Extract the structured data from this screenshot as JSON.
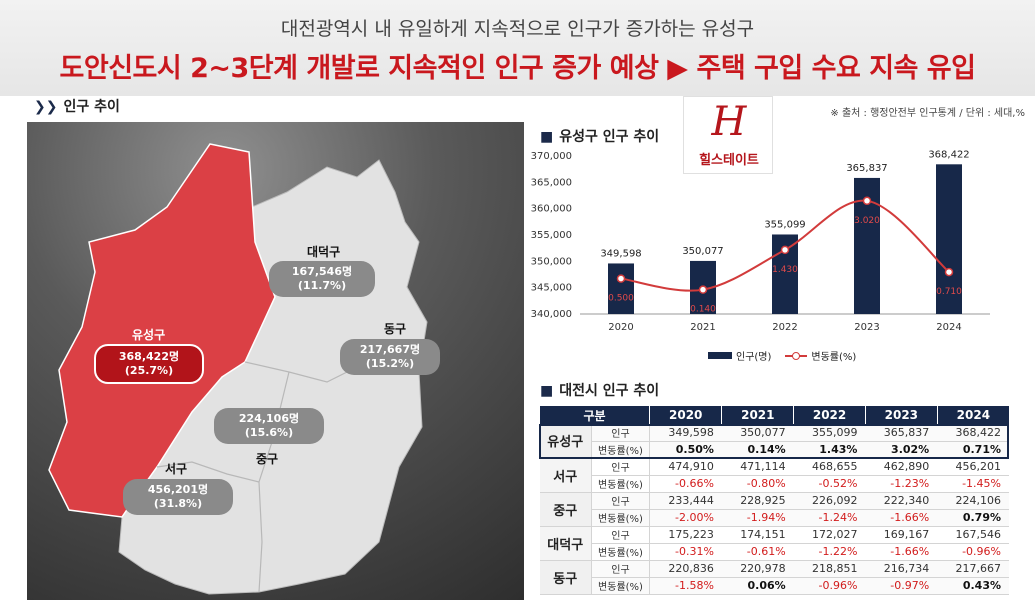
{
  "header": {
    "subtitle": "대전광역시 내 유일하게 지속적으로 인구가 증가하는 유성구",
    "title": "도안신도시 2~3단계 개발로 지속적인 인구 증가 예상 ▶ 주택 구입 수요 지속 유입"
  },
  "map_section": {
    "label": "인구 추이",
    "districts": [
      {
        "name": "유성구",
        "population": "368,422명",
        "share": "(25.7%)"
      },
      {
        "name": "대덕구",
        "population": "167,546명",
        "share": "(11.7%)"
      },
      {
        "name": "동구",
        "population": "217,667명",
        "share": "(15.2%)"
      },
      {
        "name": "중구",
        "population": "224,106명",
        "share": "(15.6%)"
      },
      {
        "name": "서구",
        "population": "456,201명",
        "share": "(31.8%)"
      }
    ]
  },
  "source": "※ 출처 : 행정안전부 인구통계 / 단위 : 세대,%",
  "logo": {
    "letter": "H",
    "name": "힐스테이트"
  },
  "chart_section": {
    "label": "유성구 인구 추이"
  },
  "chart_data": {
    "type": "bar",
    "title": "유성구 인구 추이",
    "categories": [
      "2020",
      "2021",
      "2022",
      "2023",
      "2024"
    ],
    "series": [
      {
        "name": "인구(명)",
        "type": "bar",
        "values": [
          349598,
          350077,
          355099,
          365837,
          368422
        ],
        "labels": [
          "349,598",
          "350,077",
          "355,099",
          "365,837",
          "368,422"
        ]
      },
      {
        "name": "변동률(%)",
        "type": "line",
        "values": [
          0.5,
          0.14,
          1.43,
          3.02,
          0.71
        ],
        "labels": [
          "0.500",
          "0.140",
          "1.430",
          "3.020",
          "0.710"
        ]
      }
    ],
    "yticks": [
      "340,000",
      "345,000",
      "350,000",
      "355,000",
      "360,000",
      "365,000",
      "370,000"
    ],
    "ylim": [
      340000,
      370000
    ],
    "legend_position": "bottom",
    "colors": {
      "bar": "#172849",
      "line": "#d23b3b"
    }
  },
  "table_section": {
    "label": "대전시 인구 추이"
  },
  "table": {
    "header": [
      "구분",
      "2020",
      "2021",
      "2022",
      "2023",
      "2024"
    ],
    "rows": [
      {
        "district": "유성구",
        "pop_label": "인구",
        "pop": [
          "349,598",
          "350,077",
          "355,099",
          "365,837",
          "368,422"
        ],
        "rate_label": "변동률(%)",
        "rate": [
          "0.50%",
          "0.14%",
          "1.43%",
          "3.02%",
          "0.71%"
        ]
      },
      {
        "district": "서구",
        "pop_label": "인구",
        "pop": [
          "474,910",
          "471,114",
          "468,655",
          "462,890",
          "456,201"
        ],
        "rate_label": "변동률(%)",
        "rate": [
          "-0.66%",
          "-0.80%",
          "-0.52%",
          "-1.23%",
          "-1.45%"
        ]
      },
      {
        "district": "중구",
        "pop_label": "인구",
        "pop": [
          "233,444",
          "228,925",
          "226,092",
          "222,340",
          "224,106"
        ],
        "rate_label": "변동률(%)",
        "rate": [
          "-2.00%",
          "-1.94%",
          "-1.24%",
          "-1.66%",
          "0.79%"
        ]
      },
      {
        "district": "대덕구",
        "pop_label": "인구",
        "pop": [
          "175,223",
          "174,151",
          "172,027",
          "169,167",
          "167,546"
        ],
        "rate_label": "변동률(%)",
        "rate": [
          "-0.31%",
          "-0.61%",
          "-1.22%",
          "-1.66%",
          "-0.96%"
        ]
      },
      {
        "district": "동구",
        "pop_label": "인구",
        "pop": [
          "220,836",
          "220,978",
          "218,851",
          "216,734",
          "217,667"
        ],
        "rate_label": "변동률(%)",
        "rate": [
          "-1.58%",
          "0.06%",
          "-0.96%",
          "-0.97%",
          "0.43%"
        ]
      }
    ]
  }
}
